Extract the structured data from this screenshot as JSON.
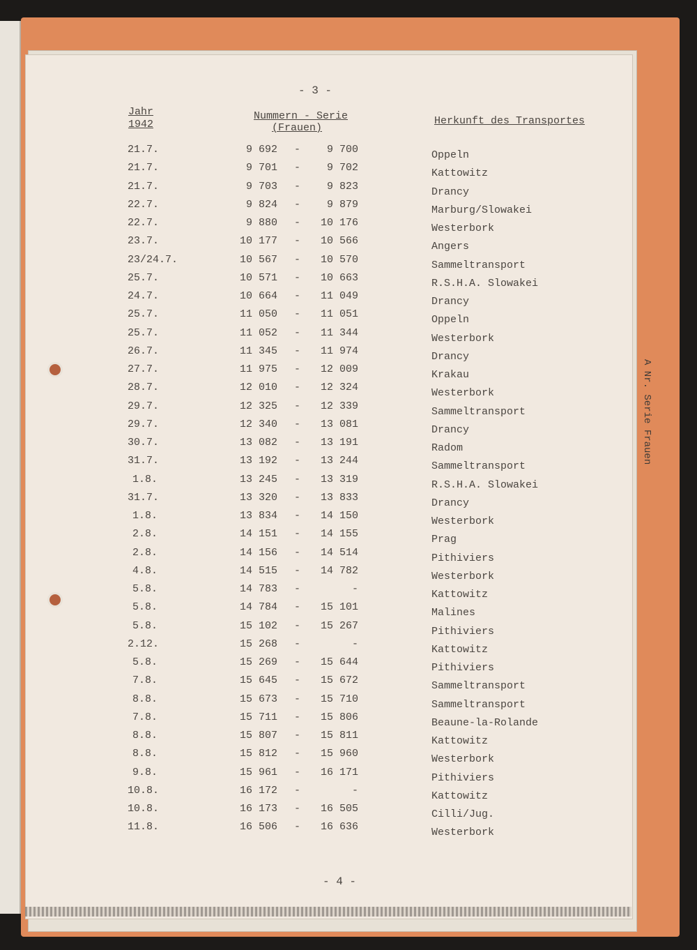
{
  "page_number_top": "- 3 -",
  "page_number_bottom": "- 4 -",
  "side_tab": "A Nr. Serie Frauen",
  "headers": {
    "year_label": "Jahr",
    "year_value": "1942",
    "series_label": "Nummern - Serie",
    "series_sub": "(Frauen)",
    "origin_label": "Herkunft des Transportes"
  },
  "rows": [
    [
      "21.7.",
      "9 692",
      "-",
      "9 700",
      "Oppeln"
    ],
    [
      "21.7.",
      "9 701",
      "-",
      "9 702",
      "Kattowitz"
    ],
    [
      "21.7.",
      "9 703",
      "-",
      "9 823",
      "Drancy"
    ],
    [
      "22.7.",
      "9 824",
      "-",
      "9 879",
      "Marburg/Slowakei"
    ],
    [
      "22.7.",
      "9 880",
      "-",
      "10 176",
      "Westerbork"
    ],
    [
      "23.7.",
      "10 177",
      "-",
      "10 566",
      "Angers"
    ],
    [
      "23/24.7.",
      "10 567",
      "-",
      "10 570",
      "Sammeltransport"
    ],
    [
      "25.7.",
      "10 571",
      "-",
      "10 663",
      "R.S.H.A. Slowakei"
    ],
    [
      "24.7.",
      "10 664",
      "-",
      "11 049",
      "Drancy"
    ],
    [
      "25.7.",
      "11 050",
      "-",
      "11 051",
      "Oppeln"
    ],
    [
      "25.7.",
      "11 052",
      "-",
      "11 344",
      "Westerbork"
    ],
    [
      "26.7.",
      "11 345",
      "-",
      "11 974",
      "Drancy"
    ],
    [
      "27.7.",
      "11 975",
      "-",
      "12 009",
      "Krakau"
    ],
    [
      "28.7.",
      "12 010",
      "-",
      "12 324",
      "Westerbork"
    ],
    [
      "29.7.",
      "12 325",
      "-",
      "12 339",
      "Sammeltransport"
    ],
    [
      "29.7.",
      "12 340",
      "-",
      "13 081",
      "Drancy"
    ],
    [
      "30.7.",
      "13 082",
      "-",
      "13 191",
      "Radom"
    ],
    [
      "31.7.",
      "13 192",
      "-",
      "13 244",
      "Sammeltransport"
    ],
    [
      "1.8.",
      "13 245",
      "-",
      "13 319",
      "R.S.H.A. Slowakei"
    ],
    [
      "31.7.",
      "13 320",
      "-",
      "13 833",
      "Drancy"
    ],
    [
      "1.8.",
      "13 834",
      "-",
      "14 150",
      "Westerbork"
    ],
    [
      "2.8.",
      "14 151",
      "-",
      "14 155",
      "Prag"
    ],
    [
      "2.8.",
      "14 156",
      "-",
      "14 514",
      "Pithiviers"
    ],
    [
      "4.8.",
      "14 515",
      "-",
      "14 782",
      "Westerbork"
    ],
    [
      "5.8.",
      "14 783",
      "-",
      "-",
      "Kattowitz"
    ],
    [
      "5.8.",
      "14 784",
      "-",
      "15 101",
      "Malines"
    ],
    [
      "5.8.",
      "15 102",
      "-",
      "15 267",
      "Pithiviers"
    ],
    [
      "2.12.",
      "15 268",
      "-",
      "-",
      "Kattowitz"
    ],
    [
      "5.8.",
      "15 269",
      "-",
      "15 644",
      "Pithiviers"
    ],
    [
      "7.8.",
      "15 645",
      "-",
      "15 672",
      "Sammeltransport"
    ],
    [
      "8.8.",
      "15 673",
      "-",
      "15 710",
      "Sammeltransport"
    ],
    [
      "7.8.",
      "15 711",
      "-",
      "15 806",
      "Beaune-la-Rolande"
    ],
    [
      "8.8.",
      "15 807",
      "-",
      "15 811",
      "Kattowitz"
    ],
    [
      "8.8.",
      "15 812",
      "-",
      "15 960",
      "Westerbork"
    ],
    [
      "9.8.",
      "15 961",
      "-",
      "16 171",
      "Pithiviers"
    ],
    [
      "10.8.",
      "16 172",
      "-",
      "-",
      "Kattowitz"
    ],
    [
      "10.8.",
      "16 173",
      "-",
      "16 505",
      "Cilli/Jug."
    ],
    [
      "11.8.",
      "16 506",
      "-",
      "16 636",
      "Westerbork"
    ]
  ]
}
